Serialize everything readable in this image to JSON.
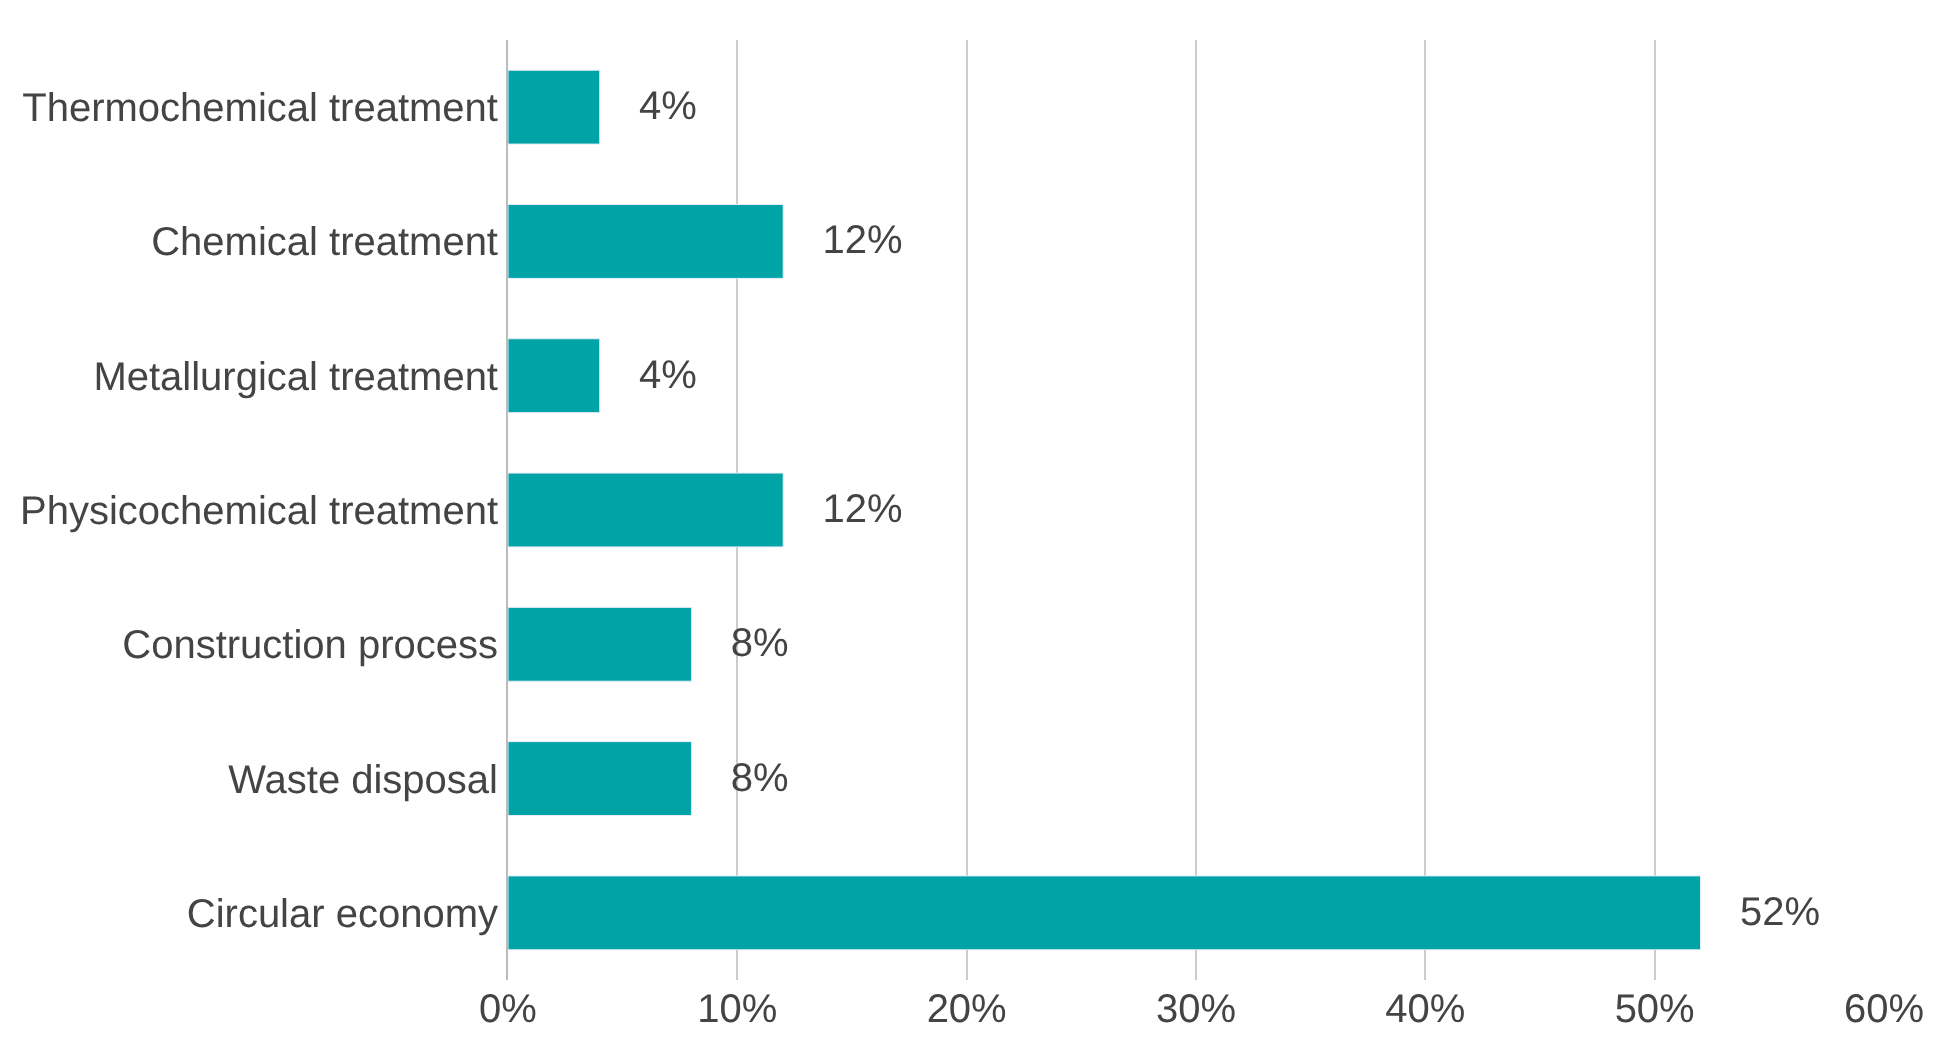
{
  "chart_data": {
    "type": "bar",
    "orientation": "horizontal",
    "categories": [
      "Thermochemical treatment",
      "Chemical treatment",
      "Metallurgical treatment",
      "Physicochemical treatment",
      "Construction process",
      "Waste disposal",
      "Circular economy"
    ],
    "values": [
      4,
      12,
      4,
      12,
      8,
      8,
      52
    ],
    "value_labels": [
      "4%",
      "12%",
      "4%",
      "12%",
      "8%",
      "8%",
      "52%"
    ],
    "color": "#00a3a6",
    "xlim": [
      0,
      60
    ],
    "xticks": [
      {
        "value": 0,
        "label": "0%"
      },
      {
        "value": 10,
        "label": "10%"
      },
      {
        "value": 20,
        "label": "20%"
      },
      {
        "value": 30,
        "label": "30%"
      },
      {
        "value": 40,
        "label": "40%"
      },
      {
        "value": 50,
        "label": "50%"
      },
      {
        "value": 60,
        "label": "60%"
      }
    ],
    "grid": "x"
  }
}
